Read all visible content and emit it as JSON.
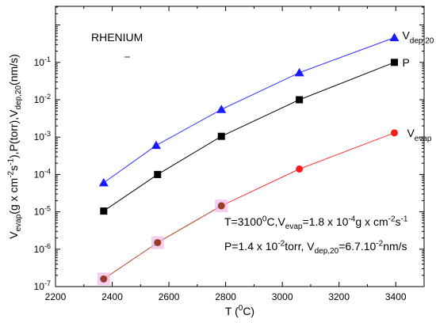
{
  "chart_data": {
    "type": "line",
    "xlabel": {
      "main": "T (",
      "sup": "0",
      "tail": "C)"
    },
    "ylabel": {
      "parts": [
        {
          "t": "V",
          "k": "n"
        },
        {
          "t": "evap",
          "k": "sub"
        },
        {
          "t": "(g x cm",
          "k": "n"
        },
        {
          "t": "-2",
          "k": "sup"
        },
        {
          "t": "s",
          "k": "n"
        },
        {
          "t": "-1",
          "k": "sup"
        },
        {
          "t": "),P(torr),V",
          "k": "n"
        },
        {
          "t": "dep,20",
          "k": "sub"
        },
        {
          "t": "(nm/s)",
          "k": "n"
        }
      ]
    },
    "xlim": [
      2200,
      3500
    ],
    "ylim_log10": [
      -7,
      0.5
    ],
    "y_scale": "log",
    "x_ticks": [
      2200,
      2400,
      2600,
      2800,
      3000,
      3200,
      3400
    ],
    "y_ticks": [
      {
        "exp": -7,
        "base": "10",
        "sup": "-7"
      },
      {
        "exp": -6,
        "base": "10",
        "sup": "-6"
      },
      {
        "exp": -5,
        "base": "10",
        "sup": "-5"
      },
      {
        "exp": -4,
        "base": "10",
        "sup": "-4"
      },
      {
        "exp": -3,
        "base": "10",
        "sup": "-3"
      },
      {
        "exp": -2,
        "base": "10",
        "sup": "-2"
      },
      {
        "exp": -1,
        "base": "10",
        "sup": "-1"
      }
    ],
    "series": [
      {
        "label_main": "V",
        "label_sub": "dep,20",
        "color": "#1a1aff",
        "line_color": "#3333ff",
        "marker": "triangle",
        "points": [
          [
            2370,
            6e-05
          ],
          [
            2555,
            0.0006
          ],
          [
            2785,
            0.0055
          ],
          [
            3060,
            0.053
          ],
          [
            3395,
            0.46
          ]
        ]
      },
      {
        "label_main": "P",
        "label_sub": "",
        "color": "#000000",
        "line_color": "#000000",
        "marker": "square",
        "points": [
          [
            2370,
            1.05e-05
          ],
          [
            2560,
            0.0001
          ],
          [
            2785,
            0.00105
          ],
          [
            3060,
            0.01
          ],
          [
            3395,
            0.1
          ]
        ]
      },
      {
        "label_main": "V",
        "label_sub": "evap",
        "color": "#ff1a1a",
        "line_color": "#ff3333",
        "marker": "circle",
        "halo_color": "#f0b8e8",
        "low_point_color": "#9a3a2a",
        "low_line_color": "#b04020",
        "points": [
          [
            2370,
            1.6e-07
          ],
          [
            2560,
            1.5e-06
          ],
          [
            2785,
            1.45e-05
          ],
          [
            3060,
            0.00014
          ],
          [
            3395,
            0.0013
          ]
        ]
      }
    ],
    "annotation_title": "RHENIUM",
    "annotation_line1": [
      {
        "t": "T=3100",
        "k": "n"
      },
      {
        "t": "0",
        "k": "sup"
      },
      {
        "t": "C,V",
        "k": "n"
      },
      {
        "t": "evap",
        "k": "sub"
      },
      {
        "t": "=1.8 x 10",
        "k": "n"
      },
      {
        "t": "-4",
        "k": "sup"
      },
      {
        "t": "g x cm",
        "k": "n"
      },
      {
        "t": "-2",
        "k": "sup"
      },
      {
        "t": "s",
        "k": "n"
      },
      {
        "t": "-1",
        "k": "sup"
      }
    ],
    "annotation_line2": [
      {
        "t": "P=1.4 x 10",
        "k": "n"
      },
      {
        "t": "-2",
        "k": "sup"
      },
      {
        "t": "torr, V",
        "k": "n"
      },
      {
        "t": "dep,20",
        "k": "sub"
      },
      {
        "t": "=6.7.10",
        "k": "n"
      },
      {
        "t": "-2",
        "k": "sup"
      },
      {
        "t": "nm/s",
        "k": "n"
      }
    ]
  }
}
